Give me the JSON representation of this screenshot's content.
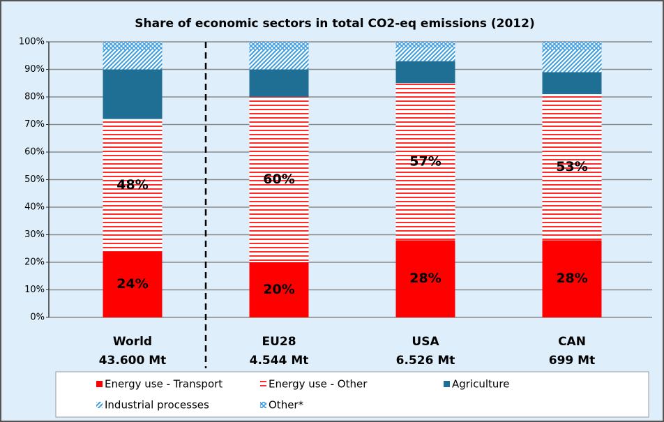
{
  "chart_data": {
    "type": "stacked-bar",
    "title": "Share of economic sectors in total CO2-eq emissions (2012)",
    "categories": [
      "World",
      "EU28",
      "USA",
      "CAN"
    ],
    "category_totals": [
      "43.600 Mt",
      "4.544 Mt",
      "6.526 Mt",
      "699 Mt"
    ],
    "series": [
      {
        "name": "Energy use - Transport",
        "color": "#ff0000",
        "pattern": "solid",
        "values": [
          24,
          20,
          28,
          28
        ],
        "value_labels": [
          "24%",
          "20%",
          "28%",
          "28%"
        ]
      },
      {
        "name": "Energy use - Other",
        "color": "#ff2a2a",
        "pattern": "horizontal",
        "values": [
          48,
          60,
          57,
          53
        ],
        "value_labels": [
          "48%",
          "60%",
          "57%",
          "53%"
        ]
      },
      {
        "name": "Agriculture",
        "color": "#1f6e94",
        "pattern": "solid",
        "values": [
          18,
          10,
          8,
          8
        ]
      },
      {
        "name": "Industrial processes",
        "color": "#3b9be0",
        "pattern": "diagonal",
        "values": [
          7,
          7,
          5,
          8
        ]
      },
      {
        "name": "Other*",
        "color": "#3b9be0",
        "pattern": "cross",
        "values": [
          3,
          3,
          2,
          3
        ]
      }
    ],
    "ylim": [
      0,
      100
    ],
    "yticks": [
      {
        "value": 0,
        "label": "0%"
      },
      {
        "value": 10,
        "label": "10%"
      },
      {
        "value": 20,
        "label": "20%"
      },
      {
        "value": 30,
        "label": "30%"
      },
      {
        "value": 40,
        "label": "40%"
      },
      {
        "value": 50,
        "label": "50%"
      },
      {
        "value": 60,
        "label": "60%"
      },
      {
        "value": 70,
        "label": "70%"
      },
      {
        "value": 80,
        "label": "80%"
      },
      {
        "value": 90,
        "label": "90%"
      },
      {
        "value": 100,
        "label": "100%"
      }
    ],
    "grid": true,
    "legend": "bottom"
  }
}
